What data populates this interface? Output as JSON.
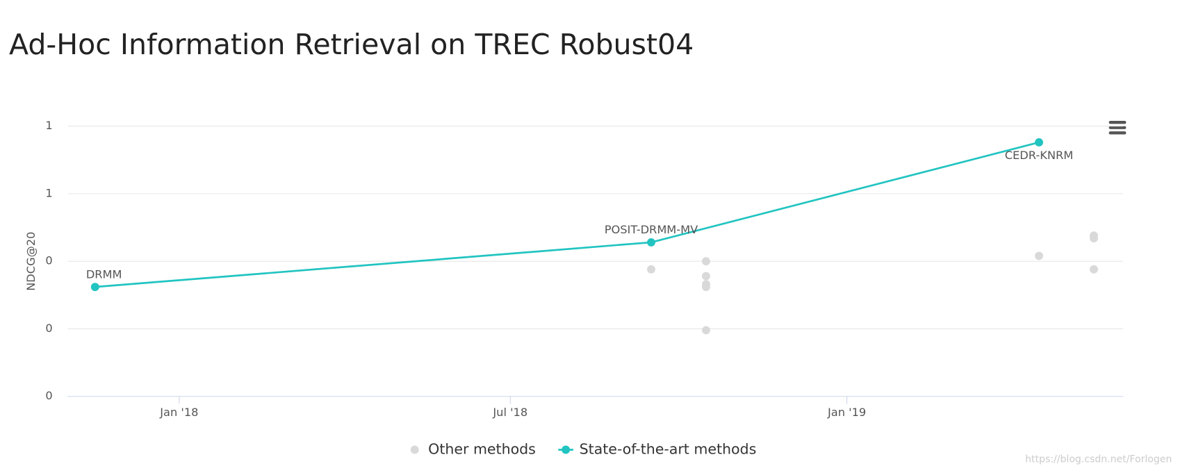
{
  "chart_data": {
    "type": "line",
    "title": "Ad-Hoc Information Retrieval on TREC Robust04",
    "y_label": "NDCG@20",
    "xlim": [
      "2017-11",
      "2019-06"
    ],
    "xticks": [
      {
        "value": "2018-01",
        "label": "Jan '18"
      },
      {
        "value": "2018-07",
        "label": "Jul '18"
      },
      {
        "value": "2019-01",
        "label": "Jan '19"
      }
    ],
    "ylim": [
      0.35,
      0.55
    ],
    "yticks": [
      {
        "value": 0.35,
        "label": "0"
      },
      {
        "value": 0.4,
        "label": "0"
      },
      {
        "value": 0.45,
        "label": "0"
      },
      {
        "value": 0.5,
        "label": "1"
      },
      {
        "value": 0.55,
        "label": "1"
      }
    ],
    "grid": true,
    "legend": "bottom",
    "series": [
      {
        "name": "Other methods",
        "type": "scatter",
        "color": "#d9d9d9",
        "x": [
          "2018-09",
          "2018-10",
          "2018-10",
          "2018-10",
          "2018-10",
          "2018-10",
          "2019-04",
          "2019-05",
          "2019-05",
          "2019-05"
        ],
        "values": [
          0.444,
          0.439,
          0.431,
          0.45,
          0.433,
          0.399,
          0.454,
          0.469,
          0.467,
          0.444
        ]
      },
      {
        "name": "State-of-the-art methods",
        "type": "line",
        "color": "#21c4c1",
        "x": [
          "2017-11",
          "2018-09",
          "2019-04"
        ],
        "values": [
          0.431,
          0.464,
          0.538
        ],
        "point_labels": [
          "DRMM",
          "POSIT-DRMM-MV",
          "CEDR-KNRM"
        ]
      }
    ],
    "watermark": "https://blog.csdn.net/Forlogen"
  }
}
